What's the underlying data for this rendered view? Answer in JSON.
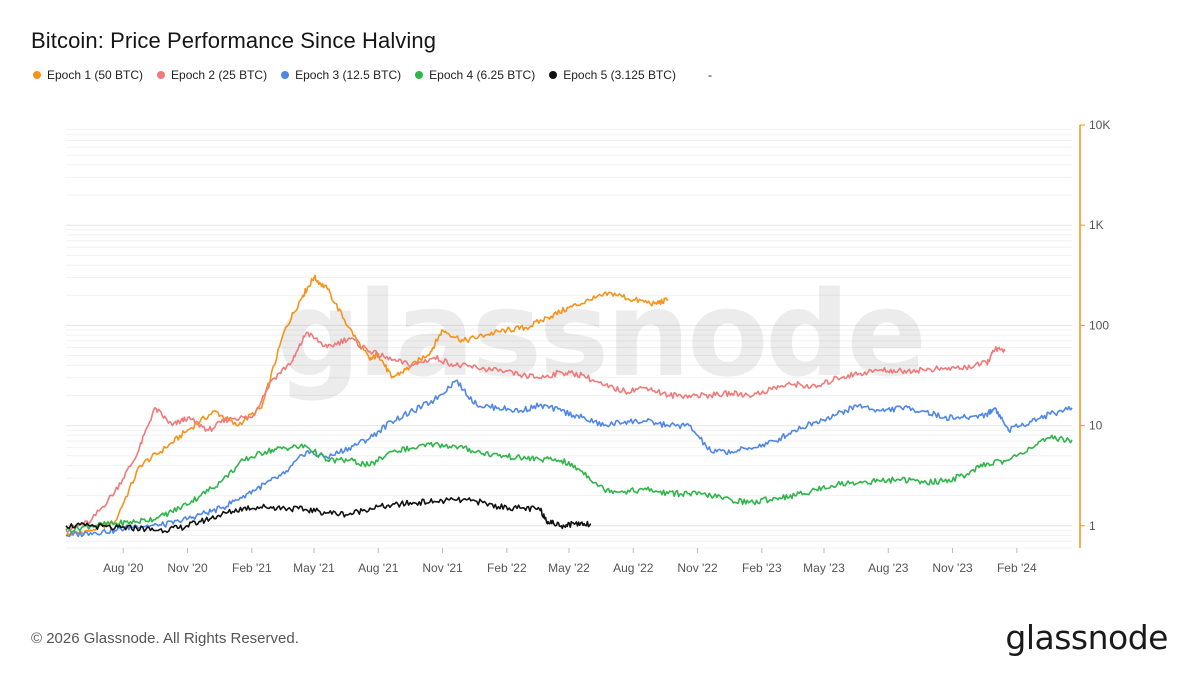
{
  "title": "Bitcoin: Price Performance Since Halving",
  "legend": [
    {
      "label": "Epoch 1 (50 BTC)",
      "color": "#f7931a"
    },
    {
      "label": "Epoch 2 (25 BTC)",
      "color": "#f07a7a"
    },
    {
      "label": "Epoch 3 (12.5 BTC)",
      "color": "#4f87e8"
    },
    {
      "label": "Epoch 4 (6.25 BTC)",
      "color": "#2fb54a"
    },
    {
      "label": "Epoch 5 (3.125 BTC)",
      "color": "#111111"
    }
  ],
  "legend_extra": "-",
  "watermark": "glassnode",
  "footer": "© 2026 Glassnode. All Rights Reserved.",
  "brand": "glassnode",
  "chart_data": {
    "type": "line",
    "y_scale": "log",
    "ylim": [
      0.6,
      10000
    ],
    "x_range": [
      "2020-05-11",
      "2024-04-20"
    ],
    "x_ticks": [
      "Aug '20",
      "Nov '20",
      "Feb '21",
      "May '21",
      "Aug '21",
      "Nov '21",
      "Feb '22",
      "May '22",
      "Aug '22",
      "Nov '22",
      "Feb '23",
      "May '23",
      "Aug '23",
      "Nov '23",
      "Feb '24"
    ],
    "y_ticks": [
      "1",
      "10",
      "100",
      "1K",
      "10K"
    ],
    "y_tick_values": [
      1,
      10,
      100,
      1000,
      10000
    ],
    "grid": true,
    "legend_position": "top-left",
    "series": [
      {
        "name": "Epoch 1 (50 BTC)",
        "color": "#f7931a",
        "x": [
          "2020-05-11",
          "2020-06-15",
          "2020-07-20",
          "2020-08-25",
          "2020-10-01",
          "2020-11-01",
          "2020-12-10",
          "2021-01-10",
          "2021-02-15",
          "2021-03-20",
          "2021-04-15",
          "2021-05-01",
          "2021-05-20",
          "2021-06-20",
          "2021-07-20",
          "2021-08-01",
          "2021-08-20",
          "2021-09-15",
          "2021-10-15",
          "2021-11-01",
          "2021-12-01",
          "2022-01-01",
          "2022-02-01",
          "2022-03-01",
          "2022-04-01",
          "2022-05-01",
          "2022-06-01",
          "2022-07-01",
          "2022-08-01",
          "2022-09-01",
          "2022-09-20"
        ],
        "y": [
          0.8,
          0.9,
          1.1,
          4,
          6,
          9,
          14,
          10,
          15,
          90,
          200,
          300,
          230,
          95,
          45,
          52,
          30,
          38,
          55,
          90,
          70,
          80,
          90,
          95,
          120,
          150,
          180,
          210,
          180,
          165,
          180
        ]
      },
      {
        "name": "Epoch 2 (25 BTC)",
        "color": "#f07a7a",
        "x": [
          "2020-05-11",
          "2020-06-15",
          "2020-07-20",
          "2020-08-20",
          "2020-09-15",
          "2020-10-10",
          "2020-11-01",
          "2020-12-01",
          "2021-01-01",
          "2021-02-01",
          "2021-03-01",
          "2021-04-01",
          "2021-04-20",
          "2021-05-20",
          "2021-06-20",
          "2021-07-20",
          "2021-08-20",
          "2021-09-20",
          "2021-10-20",
          "2021-11-20",
          "2021-12-20",
          "2022-01-20",
          "2022-02-20",
          "2022-03-20",
          "2022-04-20",
          "2022-05-20",
          "2022-06-20",
          "2022-07-20",
          "2022-08-20",
          "2022-09-20",
          "2022-10-20",
          "2022-11-20",
          "2022-12-20",
          "2023-01-20",
          "2023-02-20",
          "2023-03-20",
          "2023-04-20",
          "2023-05-20",
          "2023-06-20",
          "2023-07-20",
          "2023-08-20",
          "2023-09-20",
          "2023-10-20",
          "2023-11-20",
          "2023-12-20",
          "2024-01-01",
          "2024-01-15"
        ],
        "y": [
          0.9,
          1.1,
          2.2,
          5,
          15,
          10,
          12,
          9,
          12,
          12,
          28,
          45,
          85,
          60,
          75,
          55,
          45,
          40,
          48,
          40,
          38,
          35,
          32,
          30,
          34,
          32,
          25,
          22,
          24,
          20,
          20,
          20,
          21,
          20,
          24,
          26,
          24,
          30,
          33,
          36,
          35,
          36,
          37,
          38,
          42,
          58,
          55
        ]
      },
      {
        "name": "Epoch 3 (12.5 BTC)",
        "color": "#4f87e8",
        "x": [
          "2020-05-11",
          "2020-06-15",
          "2020-07-20",
          "2020-08-20",
          "2020-09-20",
          "2020-10-20",
          "2020-11-20",
          "2020-12-20",
          "2021-01-20",
          "2021-02-20",
          "2021-03-20",
          "2021-04-20",
          "2021-05-20",
          "2021-06-20",
          "2021-07-20",
          "2021-08-20",
          "2021-09-20",
          "2021-10-20",
          "2021-11-20",
          "2021-12-20",
          "2022-01-20",
          "2022-02-20",
          "2022-03-20",
          "2022-04-20",
          "2022-05-20",
          "2022-06-20",
          "2022-07-20",
          "2022-08-20",
          "2022-09-20",
          "2022-10-20",
          "2022-11-20",
          "2022-12-20",
          "2023-01-20",
          "2023-02-20",
          "2023-03-20",
          "2023-04-20",
          "2023-05-20",
          "2023-06-20",
          "2023-07-20",
          "2023-08-20",
          "2023-09-20",
          "2023-10-20",
          "2023-11-20",
          "2023-12-20",
          "2024-01-01",
          "2024-01-20",
          "2024-02-20",
          "2024-03-20",
          "2024-04-20"
        ],
        "y": [
          0.8,
          0.85,
          0.9,
          1.0,
          1.0,
          1.1,
          1.3,
          1.5,
          2.0,
          2.6,
          3.3,
          5.5,
          4.8,
          6.0,
          7.5,
          11,
          14,
          18,
          28,
          16,
          15,
          14,
          16,
          14,
          12,
          10,
          11,
          11,
          10,
          10,
          5.5,
          5.5,
          6,
          7,
          9,
          11,
          13,
          16,
          14,
          15,
          14,
          12,
          12,
          13,
          15,
          9,
          11,
          13,
          15
        ]
      },
      {
        "name": "Epoch 4 (6.25 BTC)",
        "color": "#2fb54a",
        "x": [
          "2020-05-11",
          "2020-06-15",
          "2020-07-20",
          "2020-08-20",
          "2020-09-20",
          "2020-10-20",
          "2020-11-20",
          "2020-12-20",
          "2021-01-20",
          "2021-02-20",
          "2021-03-20",
          "2021-04-20",
          "2021-05-20",
          "2021-06-20",
          "2021-07-20",
          "2021-08-20",
          "2021-09-20",
          "2021-10-20",
          "2021-11-20",
          "2021-12-20",
          "2022-01-20",
          "2022-02-20",
          "2022-03-20",
          "2022-04-20",
          "2022-05-20",
          "2022-06-20",
          "2022-07-20",
          "2022-08-20",
          "2022-09-20",
          "2022-10-20",
          "2022-11-20",
          "2022-12-20",
          "2023-01-20",
          "2023-02-20",
          "2023-03-20",
          "2023-04-20",
          "2023-05-20",
          "2023-06-20",
          "2023-07-20",
          "2023-08-20",
          "2023-09-20",
          "2023-10-20",
          "2023-11-20",
          "2023-12-20",
          "2024-01-20",
          "2024-02-20",
          "2024-03-20",
          "2024-04-20"
        ],
        "y": [
          0.9,
          1.0,
          1.05,
          1.1,
          1.2,
          1.5,
          2.0,
          2.8,
          4.5,
          5.5,
          6.0,
          6.2,
          4.5,
          4.5,
          4.0,
          5.5,
          6.0,
          6.5,
          6.2,
          5.5,
          5.0,
          4.8,
          4.6,
          4.5,
          3.5,
          2.3,
          2.2,
          2.3,
          2.1,
          2.1,
          2.0,
          1.8,
          1.7,
          1.9,
          2.0,
          2.3,
          2.6,
          2.7,
          2.8,
          2.9,
          2.7,
          2.8,
          3.2,
          4.2,
          4.5,
          6.0,
          7.5,
          7.2
        ]
      },
      {
        "name": "Epoch 5 (3.125 BTC)",
        "color": "#111111",
        "x": [
          "2020-05-11",
          "2020-06-15",
          "2020-07-20",
          "2020-08-20",
          "2020-09-20",
          "2020-10-20",
          "2020-11-20",
          "2020-12-20",
          "2021-01-20",
          "2021-02-20",
          "2021-03-20",
          "2021-04-20",
          "2021-05-20",
          "2021-06-20",
          "2021-07-20",
          "2021-08-20",
          "2021-09-20",
          "2021-10-20",
          "2021-11-20",
          "2021-12-20",
          "2022-01-20",
          "2022-02-20",
          "2022-03-20",
          "2022-04-01",
          "2022-04-20",
          "2022-05-10",
          "2022-06-01"
        ],
        "y": [
          1.0,
          1.0,
          0.95,
          0.95,
          0.9,
          0.95,
          1.1,
          1.3,
          1.5,
          1.55,
          1.5,
          1.45,
          1.35,
          1.3,
          1.5,
          1.6,
          1.7,
          1.75,
          1.8,
          1.75,
          1.55,
          1.5,
          1.45,
          1.1,
          1.0,
          1.05,
          1.05
        ]
      }
    ]
  }
}
